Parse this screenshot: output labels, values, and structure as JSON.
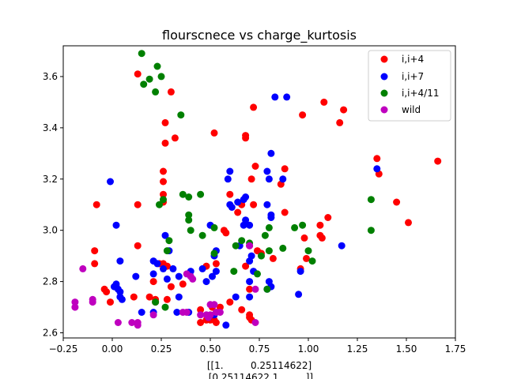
{
  "chart_data": {
    "type": "scatter",
    "title": "flourscnece vs charge_kurtosis",
    "xlabel_lines": [
      "[[1.         0.25114622]",
      " [0.25114622 1.        ]]"
    ],
    "ylabel": "",
    "xlim": [
      -0.25,
      1.75
    ],
    "ylim": [
      2.58,
      3.72
    ],
    "x_ticks": [
      -0.25,
      0.0,
      0.25,
      0.5,
      0.75,
      1.0,
      1.25,
      1.5,
      1.75
    ],
    "x_tick_labels": [
      "−0.25",
      "0.00",
      "0.25",
      "0.50",
      "0.75",
      "1.00",
      "1.25",
      "1.50",
      "1.75"
    ],
    "y_ticks": [
      2.6,
      2.8,
      3.0,
      3.2,
      3.4,
      3.6
    ],
    "y_tick_labels": [
      "2.6",
      "2.8",
      "3.0",
      "3.2",
      "3.4",
      "3.6"
    ],
    "grid": false,
    "legend_position": "top-right",
    "series": [
      {
        "name": "i,i+4",
        "color": "#ff0000",
        "points": [
          [
            0.13,
            3.61
          ],
          [
            0.3,
            3.54
          ],
          [
            0.27,
            3.42
          ],
          [
            0.32,
            3.36
          ],
          [
            0.27,
            3.34
          ],
          [
            0.52,
            3.38
          ],
          [
            0.68,
            3.37
          ],
          [
            0.68,
            3.36
          ],
          [
            0.72,
            3.48
          ],
          [
            0.97,
            3.45
          ],
          [
            1.08,
            3.5
          ],
          [
            1.16,
            3.42
          ],
          [
            1.18,
            3.47
          ],
          [
            1.35,
            3.28
          ],
          [
            1.36,
            3.22
          ],
          [
            1.66,
            3.27
          ],
          [
            1.45,
            3.11
          ],
          [
            1.51,
            3.03
          ],
          [
            0.73,
            3.25
          ],
          [
            0.86,
            3.18
          ],
          [
            0.88,
            3.24
          ],
          [
            0.26,
            3.23
          ],
          [
            0.26,
            3.19
          ],
          [
            0.26,
            3.14
          ],
          [
            0.26,
            3.11
          ],
          [
            0.13,
            3.1
          ],
          [
            -0.08,
            3.1
          ],
          [
            0.6,
            3.14
          ],
          [
            0.64,
            3.07
          ],
          [
            0.66,
            3.1
          ],
          [
            0.71,
            3.2
          ],
          [
            0.72,
            3.1
          ],
          [
            0.88,
            3.07
          ],
          [
            1.1,
            3.05
          ],
          [
            1.06,
            3.02
          ],
          [
            1.06,
            2.98
          ],
          [
            1.07,
            2.97
          ],
          [
            0.98,
            2.97
          ],
          [
            0.57,
            3.0
          ],
          [
            0.13,
            2.94
          ],
          [
            -0.09,
            2.92
          ],
          [
            -0.09,
            2.87
          ],
          [
            0.7,
            2.94
          ],
          [
            0.74,
            2.92
          ],
          [
            0.76,
            2.91
          ],
          [
            0.82,
            2.89
          ],
          [
            0.99,
            2.89
          ],
          [
            0.96,
            2.85
          ],
          [
            0.24,
            2.87
          ],
          [
            0.26,
            2.87
          ],
          [
            0.28,
            2.86
          ],
          [
            0.48,
            2.86
          ],
          [
            0.53,
            2.87
          ],
          [
            0.58,
            2.99
          ],
          [
            0.68,
            2.86
          ],
          [
            0.21,
            2.8
          ],
          [
            0.3,
            2.78
          ],
          [
            0.36,
            2.79
          ],
          [
            -0.04,
            2.77
          ],
          [
            -0.03,
            2.76
          ],
          [
            0.11,
            2.74
          ],
          [
            0.19,
            2.74
          ],
          [
            -0.01,
            2.72
          ],
          [
            0.22,
            2.73
          ],
          [
            0.22,
            2.72
          ],
          [
            0.45,
            2.69
          ],
          [
            0.51,
            2.7
          ],
          [
            0.55,
            2.7
          ],
          [
            0.6,
            2.72
          ],
          [
            0.66,
            2.69
          ],
          [
            0.7,
            2.67
          ],
          [
            0.7,
            2.66
          ],
          [
            0.71,
            2.65
          ],
          [
            0.45,
            2.64
          ],
          [
            0.48,
            2.65
          ],
          [
            0.5,
            2.65
          ],
          [
            0.52,
            2.65
          ],
          [
            0.53,
            2.64
          ],
          [
            0.28,
            2.73
          ],
          [
            0.7,
            2.77
          ]
        ]
      },
      {
        "name": "i,i+7",
        "color": "#0000ff",
        "points": [
          [
            -0.01,
            3.19
          ],
          [
            0.02,
            3.02
          ],
          [
            0.83,
            3.52
          ],
          [
            0.89,
            3.52
          ],
          [
            0.81,
            3.3
          ],
          [
            0.59,
            3.2
          ],
          [
            0.6,
            3.23
          ],
          [
            0.79,
            3.23
          ],
          [
            0.8,
            3.2
          ],
          [
            0.87,
            3.2
          ],
          [
            1.35,
            3.24
          ],
          [
            0.6,
            3.1
          ],
          [
            0.61,
            3.09
          ],
          [
            0.64,
            3.11
          ],
          [
            0.67,
            3.12
          ],
          [
            0.68,
            3.13
          ],
          [
            0.67,
            3.02
          ],
          [
            0.68,
            3.04
          ],
          [
            0.79,
            3.1
          ],
          [
            0.81,
            3.06
          ],
          [
            0.81,
            3.05
          ],
          [
            0.7,
            3.02
          ],
          [
            0.5,
            3.02
          ],
          [
            0.29,
            2.92
          ],
          [
            0.27,
            2.98
          ],
          [
            0.52,
            2.9
          ],
          [
            0.53,
            2.92
          ],
          [
            0.65,
            2.94
          ],
          [
            0.71,
            2.9
          ],
          [
            0.04,
            2.88
          ],
          [
            0.21,
            2.88
          ],
          [
            0.23,
            2.87
          ],
          [
            0.26,
            2.85
          ],
          [
            0.31,
            2.85
          ],
          [
            0.34,
            2.82
          ],
          [
            0.4,
            2.84
          ],
          [
            0.46,
            2.85
          ],
          [
            0.48,
            2.8
          ],
          [
            0.51,
            2.82
          ],
          [
            0.53,
            2.84
          ],
          [
            0.7,
            2.88
          ],
          [
            0.72,
            2.84
          ],
          [
            0.7,
            2.8
          ],
          [
            0.8,
            2.8
          ],
          [
            0.79,
            2.77
          ],
          [
            0.81,
            2.78
          ],
          [
            0.21,
            2.83
          ],
          [
            0.28,
            2.81
          ],
          [
            0.12,
            2.82
          ],
          [
            0.01,
            2.78
          ],
          [
            0.02,
            2.79
          ],
          [
            0.02,
            2.78
          ],
          [
            0.03,
            2.77
          ],
          [
            0.04,
            2.76
          ],
          [
            0.04,
            2.74
          ],
          [
            0.34,
            2.74
          ],
          [
            0.63,
            2.74
          ],
          [
            0.7,
            2.74
          ],
          [
            0.95,
            2.75
          ],
          [
            0.96,
            2.84
          ],
          [
            1.17,
            2.94
          ],
          [
            0.15,
            2.68
          ],
          [
            0.21,
            2.68
          ],
          [
            0.39,
            2.68
          ],
          [
            0.49,
            2.66
          ],
          [
            0.52,
            2.67
          ],
          [
            0.58,
            2.63
          ],
          [
            0.33,
            2.68
          ],
          [
            0.05,
            2.73
          ]
        ]
      },
      {
        "name": "i,i+4/11",
        "color": "#008000",
        "points": [
          [
            0.15,
            3.69
          ],
          [
            0.19,
            3.59
          ],
          [
            0.16,
            3.57
          ],
          [
            0.23,
            3.64
          ],
          [
            0.25,
            3.6
          ],
          [
            0.22,
            3.54
          ],
          [
            0.35,
            3.45
          ],
          [
            0.36,
            3.14
          ],
          [
            0.39,
            3.13
          ],
          [
            0.45,
            3.14
          ],
          [
            0.24,
            3.1
          ],
          [
            0.26,
            3.12
          ],
          [
            0.39,
            3.06
          ],
          [
            0.39,
            3.04
          ],
          [
            0.4,
            3.0
          ],
          [
            0.52,
            3.01
          ],
          [
            0.46,
            2.98
          ],
          [
            0.29,
            2.96
          ],
          [
            0.28,
            2.92
          ],
          [
            0.66,
            2.96
          ],
          [
            0.63,
            2.94
          ],
          [
            0.52,
            2.91
          ],
          [
            0.62,
            2.84
          ],
          [
            0.7,
            2.95
          ],
          [
            0.78,
            2.98
          ],
          [
            0.8,
            3.01
          ],
          [
            0.93,
            3.01
          ],
          [
            0.97,
            3.02
          ],
          [
            1.0,
            2.92
          ],
          [
            1.02,
            2.88
          ],
          [
            0.76,
            2.9
          ],
          [
            0.8,
            2.92
          ],
          [
            0.87,
            2.93
          ],
          [
            0.74,
            2.83
          ],
          [
            0.79,
            2.77
          ],
          [
            1.32,
            3.12
          ],
          [
            1.32,
            3.0
          ],
          [
            0.22,
            2.72
          ],
          [
            0.27,
            2.7
          ]
        ]
      },
      {
        "name": "wild",
        "color": "#bf00bf",
        "points": [
          [
            -0.15,
            2.85
          ],
          [
            -0.19,
            2.72
          ],
          [
            -0.19,
            2.7
          ],
          [
            -0.1,
            2.73
          ],
          [
            -0.1,
            2.72
          ],
          [
            0.03,
            2.64
          ],
          [
            0.1,
            2.64
          ],
          [
            0.13,
            2.64
          ],
          [
            0.13,
            2.63
          ],
          [
            0.21,
            2.67
          ],
          [
            0.36,
            2.68
          ],
          [
            0.38,
            2.68
          ],
          [
            0.38,
            2.83
          ],
          [
            0.4,
            2.82
          ],
          [
            0.41,
            2.81
          ],
          [
            0.45,
            2.67
          ],
          [
            0.48,
            2.67
          ],
          [
            0.49,
            2.66
          ],
          [
            0.5,
            2.67
          ],
          [
            0.52,
            2.71
          ],
          [
            0.53,
            2.68
          ],
          [
            0.55,
            2.68
          ],
          [
            0.5,
            2.71
          ],
          [
            0.7,
            2.94
          ],
          [
            0.73,
            2.77
          ],
          [
            0.73,
            2.64
          ]
        ]
      }
    ]
  }
}
